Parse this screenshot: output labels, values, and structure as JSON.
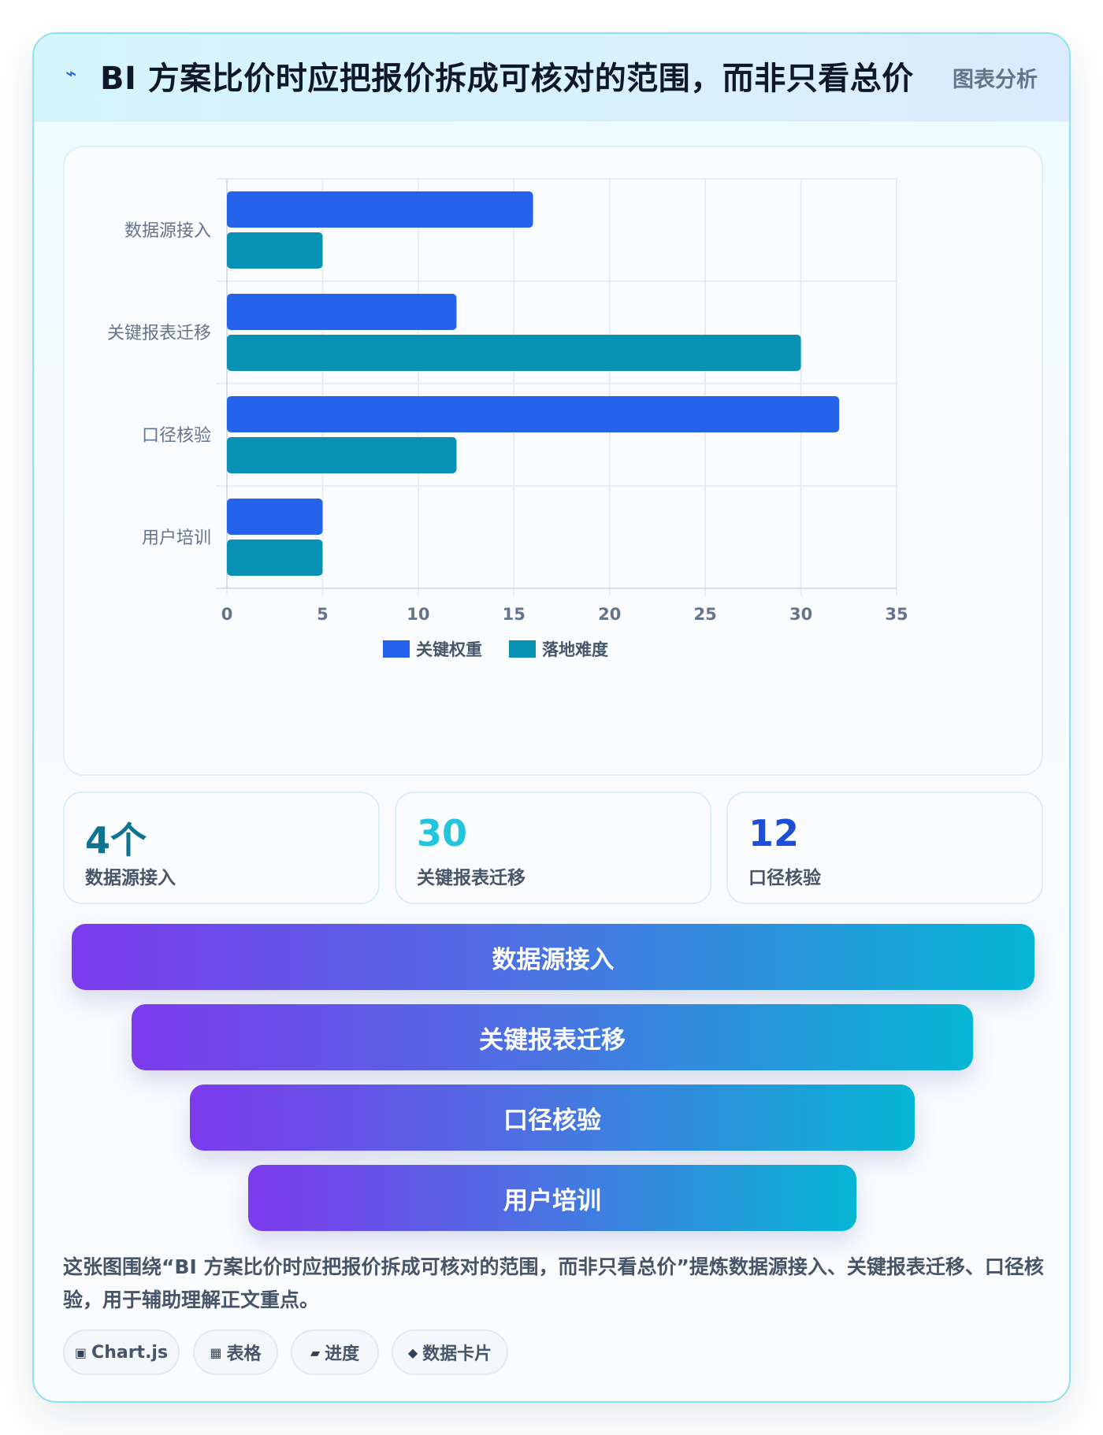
{
  "header": {
    "icon": "lightning-icon",
    "title": "BI 方案比价时应把报价拆成可核对的范围，而非只看总价",
    "tag": "图表分析"
  },
  "chart_data": {
    "type": "bar",
    "orientation": "horizontal",
    "categories": [
      "数据源接入",
      "关键报表迁移",
      "口径核验",
      "用户培训"
    ],
    "series": [
      {
        "name": "关键权重",
        "color": "#2563eb",
        "values": [
          16,
          12,
          32,
          5
        ]
      },
      {
        "name": "落地难度",
        "color": "#0891b2",
        "values": [
          5,
          30,
          12,
          5
        ]
      }
    ],
    "xlim": [
      0,
      35
    ],
    "xticks": [
      0,
      5,
      10,
      15,
      20,
      25,
      30,
      35
    ],
    "grid": true,
    "legend_position": "bottom"
  },
  "stats": [
    {
      "value": "4个",
      "label": "数据源接入",
      "color": "#0e7490"
    },
    {
      "value": "30",
      "label": "关键报表迁移",
      "color": "#22c5dc"
    },
    {
      "value": "12",
      "label": "口径核验",
      "color": "#1d4ed8"
    }
  ],
  "funnel": [
    "数据源接入",
    "关键报表迁移",
    "口径核验",
    "用户培训"
  ],
  "description": "这张图围绕“BI 方案比价时应把报价拆成可核对的范围，而非只看总价”提炼数据源接入、关键报表迁移、口径核验，用于辅助理解正文重点。",
  "chips": [
    {
      "icon": "▣",
      "label": "Chart.js"
    },
    {
      "icon": "▦",
      "label": "表格"
    },
    {
      "icon": "▰",
      "label": "进度"
    },
    {
      "icon": "◆",
      "label": "数据卡片"
    }
  ]
}
